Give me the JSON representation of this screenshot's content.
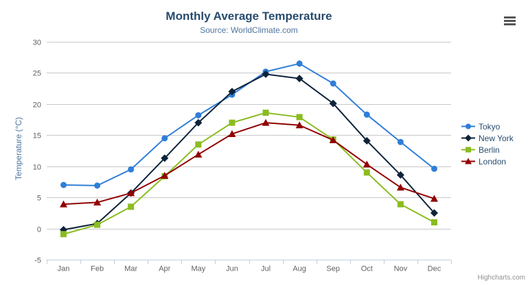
{
  "header": {
    "title": "Monthly Average Temperature",
    "subtitle": "Source: WorldClimate.com",
    "title_color": "#274b6d",
    "subtitle_color": "#4d759e"
  },
  "context_menu": {
    "icon": "hamburger",
    "color": "#565656"
  },
  "credit": {
    "label": "Highcharts.com",
    "color": "#909090"
  },
  "chart_data": {
    "type": "line",
    "title": "Monthly Average Temperature",
    "subtitle": "Source: WorldClimate.com",
    "xlabel": "",
    "ylabel": "Temperature (°C)",
    "ylim": [
      -5,
      30
    ],
    "yticks": [
      -5,
      0,
      5,
      10,
      15,
      20,
      25,
      30
    ],
    "grid": true,
    "legend_position": "right",
    "categories": [
      "Jan",
      "Feb",
      "Mar",
      "Apr",
      "May",
      "Jun",
      "Jul",
      "Aug",
      "Sep",
      "Oct",
      "Nov",
      "Dec"
    ],
    "series": [
      {
        "name": "Tokyo",
        "color": "#2f7ed8",
        "marker": "circle",
        "values": [
          7.0,
          6.9,
          9.5,
          14.5,
          18.2,
          21.5,
          25.2,
          26.5,
          23.3,
          18.3,
          13.9,
          9.6
        ]
      },
      {
        "name": "New York",
        "color": "#0d233a",
        "marker": "diamond",
        "values": [
          -0.2,
          0.8,
          5.7,
          11.3,
          17.0,
          22.0,
          24.8,
          24.1,
          20.1,
          14.1,
          8.6,
          2.5
        ]
      },
      {
        "name": "Berlin",
        "color": "#8bbc21",
        "marker": "square",
        "values": [
          -0.9,
          0.6,
          3.5,
          8.4,
          13.5,
          17.0,
          18.6,
          17.9,
          14.3,
          9.0,
          3.9,
          1.0
        ]
      },
      {
        "name": "London",
        "color": "#910000",
        "marker": "triangle",
        "values": [
          3.9,
          4.2,
          5.7,
          8.5,
          11.9,
          15.2,
          17.0,
          16.6,
          14.2,
          10.3,
          6.6,
          4.8
        ]
      }
    ],
    "colors": {
      "grid": "#c8c8c8",
      "axis_line": "#c0d0e0",
      "axis_label": "#606060",
      "legend_text": "#274b6d"
    }
  }
}
